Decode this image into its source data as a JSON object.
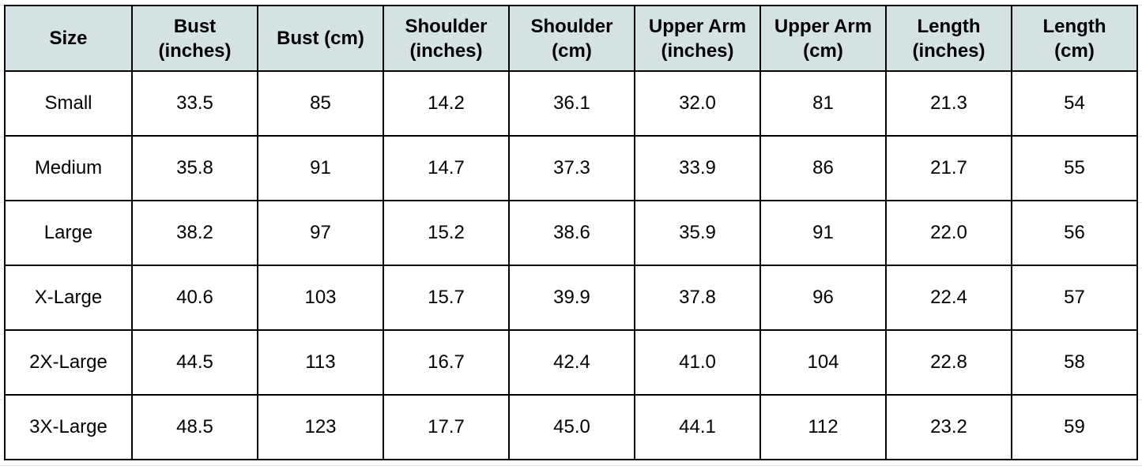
{
  "table": {
    "header": [
      [
        "Size"
      ],
      [
        "Bust",
        "(inches)"
      ],
      [
        "Bust (cm)"
      ],
      [
        "Shoulder",
        "(inches)"
      ],
      [
        "Shoulder",
        "(cm)"
      ],
      [
        "Upper Arm",
        "(inches)"
      ],
      [
        "Upper Arm",
        "(cm)"
      ],
      [
        "Length",
        "(inches)"
      ],
      [
        "Length",
        "(cm)"
      ]
    ],
    "rows": [
      [
        "Small",
        "33.5",
        "85",
        "14.2",
        "36.1",
        "32.0",
        "81",
        "21.3",
        "54"
      ],
      [
        "Medium",
        "35.8",
        "91",
        "14.7",
        "37.3",
        "33.9",
        "86",
        "21.7",
        "55"
      ],
      [
        "Large",
        "38.2",
        "97",
        "15.2",
        "38.6",
        "35.9",
        "91",
        "22.0",
        "56"
      ],
      [
        "X-Large",
        "40.6",
        "103",
        "15.7",
        "39.9",
        "37.8",
        "96",
        "22.4",
        "57"
      ],
      [
        "2X-Large",
        "44.5",
        "113",
        "16.7",
        "42.4",
        "41.0",
        "104",
        "22.8",
        "58"
      ],
      [
        "3X-Large",
        "48.5",
        "123",
        "17.7",
        "45.0",
        "44.1",
        "112",
        "23.2",
        "59"
      ]
    ]
  }
}
